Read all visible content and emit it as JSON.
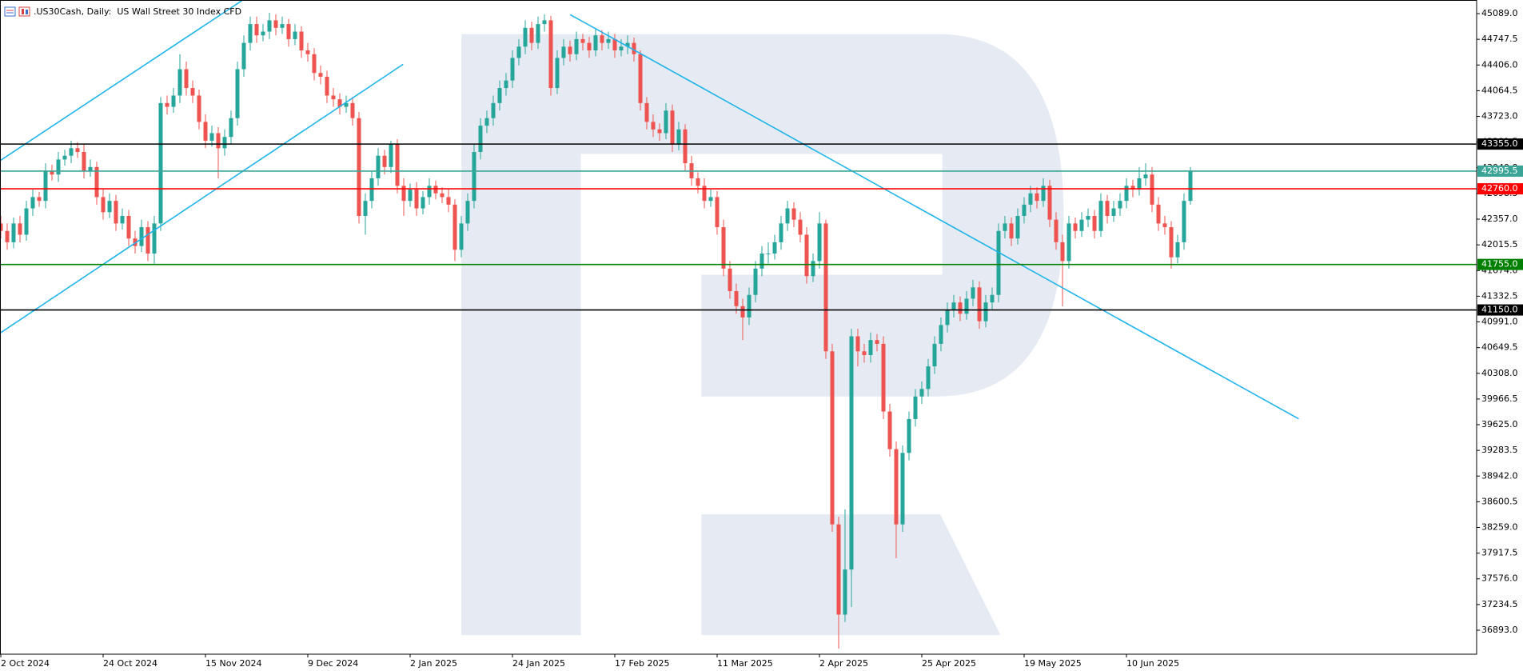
{
  "chart_data": {
    "type": "candlestick",
    "title": ".US30Cash, Daily:  US Wall Street 30 Index CFD",
    "up_color": "#26a69a",
    "down_color": "#ef5350",
    "ylim": [
      36574,
      45270
    ],
    "yticks": [
      {
        "value": 45089,
        "label": "45089.0"
      },
      {
        "value": 44747.5,
        "label": "44747.5"
      },
      {
        "value": 44406,
        "label": "44406.0"
      },
      {
        "value": 44064.5,
        "label": "44064.5"
      },
      {
        "value": 43723,
        "label": "43723.0"
      },
      {
        "value": 43381.5,
        "label": "43381.5"
      },
      {
        "value": 43040,
        "label": "43040.0"
      },
      {
        "value": 42698.5,
        "label": "42698.5"
      },
      {
        "value": 42357,
        "label": "42357.0"
      },
      {
        "value": 42015.5,
        "label": "42015.5"
      },
      {
        "value": 41674,
        "label": "41674.0"
      },
      {
        "value": 41332.5,
        "label": "41332.5"
      },
      {
        "value": 40991,
        "label": "40991.0"
      },
      {
        "value": 40649.5,
        "label": "40649.5"
      },
      {
        "value": 40308,
        "label": "40308.0"
      },
      {
        "value": 39966.5,
        "label": "39966.5"
      },
      {
        "value": 39625,
        "label": "39625.0"
      },
      {
        "value": 39283.5,
        "label": "39283.5"
      },
      {
        "value": 38942,
        "label": "38942.0"
      },
      {
        "value": 38600.5,
        "label": "38600.5"
      },
      {
        "value": 38259,
        "label": "38259.0"
      },
      {
        "value": 37917.5,
        "label": "37917.5"
      },
      {
        "value": 37576,
        "label": "37576.0"
      },
      {
        "value": 37234.5,
        "label": "37234.5"
      },
      {
        "value": 36893,
        "label": "36893.0"
      }
    ],
    "levels": [
      {
        "value": 43355,
        "label": "43355.0",
        "color": "#000000"
      },
      {
        "value": 42995.5,
        "label": "42995.5",
        "color": "#3aa597"
      },
      {
        "value": 42760,
        "label": "42760.0",
        "color": "#ff0000"
      },
      {
        "value": 41755,
        "label": "41755.0",
        "color": "#008000"
      },
      {
        "value": 41150,
        "label": "41150.0",
        "color": "#000000"
      }
    ],
    "categories": [
      "2 Oct 2024",
      null,
      null,
      null,
      null,
      null,
      null,
      null,
      null,
      null,
      null,
      null,
      null,
      null,
      null,
      null,
      "24 Oct 2024",
      null,
      null,
      null,
      null,
      null,
      null,
      null,
      null,
      null,
      null,
      null,
      null,
      null,
      null,
      null,
      "15 Nov 2024",
      null,
      null,
      null,
      null,
      null,
      null,
      null,
      null,
      null,
      null,
      null,
      null,
      null,
      null,
      null,
      "9 Dec 2024",
      null,
      null,
      null,
      null,
      null,
      null,
      null,
      null,
      null,
      null,
      null,
      null,
      null,
      null,
      null,
      "2 Jan 2025",
      null,
      null,
      null,
      null,
      null,
      null,
      null,
      null,
      null,
      null,
      null,
      null,
      null,
      null,
      null,
      "24 Jan 2025",
      null,
      null,
      null,
      null,
      null,
      null,
      null,
      null,
      null,
      null,
      null,
      null,
      null,
      null,
      null,
      "17 Feb 2025",
      null,
      null,
      null,
      null,
      null,
      null,
      null,
      null,
      null,
      null,
      null,
      null,
      null,
      null,
      null,
      "11 Mar 2025",
      null,
      null,
      null,
      null,
      null,
      null,
      null,
      null,
      null,
      null,
      null,
      null,
      null,
      null,
      null,
      "2 Apr 2025",
      null,
      null,
      null,
      null,
      null,
      null,
      null,
      null,
      null,
      null,
      null,
      null,
      null,
      null,
      null,
      "25 Apr 2025",
      null,
      null,
      null,
      null,
      null,
      null,
      null,
      null,
      null,
      null,
      null,
      null,
      null,
      null,
      null,
      "19 May 2025",
      null,
      null,
      null,
      null,
      null,
      null,
      null,
      null,
      null,
      null,
      null,
      null,
      null,
      null,
      null,
      "10 Jun 2025",
      null,
      null,
      null,
      null,
      null,
      null,
      null,
      null,
      null,
      null
    ],
    "open": [
      42300,
      42200,
      42050,
      42300,
      42150,
      42500,
      42650,
      42600,
      43000,
      42950,
      43150,
      43200,
      43300,
      43250,
      43000,
      43050,
      42650,
      42450,
      42600,
      42300,
      42400,
      42100,
      42000,
      42250,
      41900,
      42300,
      43900,
      43850,
      44000,
      44350,
      44100,
      44000,
      43650,
      43400,
      43500,
      43300,
      43450,
      43700,
      44350,
      44700,
      44950,
      44800,
      44850,
      45000,
      44900,
      44950,
      44750,
      44850,
      44600,
      44550,
      44300,
      44250,
      44000,
      43950,
      43850,
      43900,
      43700,
      42400,
      42600,
      42900,
      43200,
      43050,
      43350,
      42800,
      42600,
      42750,
      42500,
      42650,
      42800,
      42700,
      42650,
      42550,
      41950,
      42300,
      42600,
      43250,
      43600,
      43700,
      43900,
      44100,
      44200,
      44500,
      44650,
      44900,
      44700,
      44950,
      45000,
      44100,
      44500,
      44650,
      44550,
      44750,
      44700,
      44600,
      44800,
      44700,
      44750,
      44600,
      44650,
      44700,
      44550,
      43900,
      43650,
      43550,
      43500,
      43800,
      43350,
      43550,
      43100,
      42900,
      42800,
      42600,
      42650,
      42250,
      41700,
      41400,
      41200,
      41050,
      41350,
      41700,
      41900,
      41900,
      42050,
      42300,
      42500,
      42350,
      42150,
      41600,
      41800,
      42300,
      40600,
      38300,
      37100,
      37700,
      40800,
      40600,
      40550,
      40750,
      40700,
      39800,
      39300,
      38300,
      39250,
      39700,
      40000,
      40100,
      40400,
      40700,
      40950,
      41150,
      41250,
      41100,
      41300,
      41450,
      41000,
      41250,
      41350,
      42200,
      42300,
      42100,
      42400,
      42550,
      42700,
      42600,
      42800,
      42350,
      42050,
      41800,
      42300,
      42200,
      42350,
      42400,
      42200,
      42600,
      42400,
      42500,
      42600,
      42800,
      42750,
      42900,
      42950,
      42550,
      42300,
      42250,
      41850,
      42050,
      42600
    ],
    "high": [
      42400,
      42300,
      42380,
      42400,
      42600,
      42750,
      42720,
      43100,
      43080,
      43250,
      43280,
      43400,
      43380,
      43350,
      43150,
      43120,
      42750,
      42700,
      42680,
      42500,
      42480,
      42200,
      42350,
      42330,
      42400,
      43980,
      44000,
      44100,
      44550,
      44450,
      44200,
      44080,
      43750,
      43600,
      43580,
      43550,
      43800,
      44450,
      44800,
      45050,
      45050,
      44950,
      45100,
      45080,
      45050,
      45020,
      44950,
      44920,
      44700,
      44630,
      44400,
      44330,
      44100,
      44030,
      44000,
      43980,
      43780,
      42700,
      43000,
      43300,
      43280,
      43400,
      43420,
      42900,
      42830,
      42850,
      42730,
      42900,
      42870,
      42780,
      42750,
      42620,
      42400,
      42700,
      43350,
      43700,
      43800,
      44000,
      44200,
      44300,
      44600,
      44750,
      45000,
      44980,
      45050,
      45080,
      45060,
      44600,
      44750,
      44730,
      44850,
      44820,
      44780,
      44900,
      44870,
      44850,
      44820,
      44750,
      44800,
      44770,
      44600,
      43980,
      43750,
      43630,
      43900,
      43880,
      43650,
      43620,
      43200,
      42980,
      42900,
      42750,
      42730,
      42350,
      41800,
      41500,
      41300,
      41450,
      41800,
      42000,
      42050,
      42150,
      42400,
      42600,
      42580,
      42450,
      42250,
      41900,
      42450,
      42350,
      40700,
      38400,
      38500,
      40900,
      40900,
      40700,
      40850,
      40830,
      40800,
      39900,
      39400,
      39350,
      39800,
      40100,
      40200,
      40500,
      40800,
      41050,
      41250,
      41350,
      41330,
      41400,
      41550,
      41530,
      41350,
      41450,
      42300,
      42400,
      42380,
      42500,
      42650,
      42800,
      42780,
      42900,
      42880,
      42450,
      42150,
      42400,
      42380,
      42450,
      42500,
      42480,
      42700,
      42680,
      42600,
      42700,
      42900,
      42880,
      43050,
      43100,
      43050,
      42650,
      42400,
      42330,
      42150,
      42700,
      43050
    ],
    "low": [
      42100,
      41950,
      41970,
      42050,
      42070,
      42400,
      42520,
      42500,
      42870,
      42850,
      43070,
      43100,
      43170,
      42900,
      42920,
      42550,
      42350,
      42370,
      42200,
      42220,
      42000,
      41900,
      41920,
      41800,
      41750,
      42200,
      43750,
      43770,
      43900,
      44000,
      43900,
      43550,
      43300,
      43320,
      42900,
      43200,
      43350,
      43600,
      44250,
      44600,
      44700,
      44720,
      44750,
      44800,
      44820,
      44650,
      44670,
      44500,
      44450,
      44200,
      44150,
      43900,
      43850,
      43750,
      43770,
      43600,
      42300,
      42150,
      42500,
      42800,
      42950,
      42970,
      42700,
      42400,
      42520,
      42400,
      42420,
      42550,
      42620,
      42570,
      42450,
      41800,
      41850,
      42200,
      42500,
      43150,
      43500,
      43600,
      43800,
      44000,
      44100,
      44400,
      44550,
      44600,
      44620,
      44850,
      44000,
      44020,
      44400,
      44450,
      44470,
      44600,
      44500,
      44520,
      44600,
      44620,
      44500,
      44520,
      44550,
      44450,
      43800,
      43550,
      43450,
      43400,
      43420,
      43250,
      43270,
      43000,
      42800,
      42700,
      42500,
      42520,
      42150,
      41600,
      41300,
      41100,
      40750,
      40950,
      41250,
      41600,
      41750,
      41820,
      41950,
      42200,
      42250,
      42050,
      41500,
      41520,
      41700,
      40500,
      38200,
      36650,
      37000,
      37200,
      40400,
      40450,
      40450,
      40600,
      39700,
      39200,
      37850,
      38200,
      39150,
      39600,
      39900,
      40000,
      40300,
      40600,
      40850,
      41050,
      41000,
      41020,
      41200,
      40900,
      40920,
      41150,
      41250,
      42100,
      42000,
      42020,
      42300,
      42450,
      42500,
      42520,
      42250,
      41950,
      41200,
      41700,
      42100,
      42120,
      42250,
      42100,
      42120,
      42300,
      42320,
      42400,
      42500,
      42650,
      42670,
      42800,
      42450,
      42200,
      42150,
      41700,
      41770,
      41950,
      42550
    ],
    "close": [
      42200,
      42050,
      42300,
      42150,
      42500,
      42650,
      42600,
      43000,
      42950,
      43150,
      43200,
      43300,
      43250,
      43000,
      43050,
      42650,
      42450,
      42600,
      42300,
      42400,
      42100,
      42000,
      42250,
      41900,
      42300,
      43900,
      43850,
      44000,
      44350,
      44100,
      44000,
      43650,
      43400,
      43500,
      43300,
      43450,
      43700,
      44350,
      44700,
      44950,
      44800,
      44850,
      45000,
      44900,
      44950,
      44750,
      44850,
      44600,
      44550,
      44300,
      44250,
      44000,
      43950,
      43850,
      43900,
      43700,
      42400,
      42600,
      42900,
      43200,
      43050,
      43350,
      42800,
      42600,
      42750,
      42500,
      42650,
      42800,
      42700,
      42650,
      42550,
      41950,
      42300,
      42600,
      43250,
      43600,
      43700,
      43900,
      44100,
      44200,
      44500,
      44650,
      44900,
      44700,
      44950,
      45000,
      44100,
      44500,
      44650,
      44550,
      44750,
      44700,
      44600,
      44800,
      44700,
      44750,
      44600,
      44650,
      44700,
      44550,
      43900,
      43650,
      43550,
      43500,
      43800,
      43350,
      43550,
      43100,
      42900,
      42800,
      42600,
      42650,
      42250,
      41700,
      41400,
      41200,
      41050,
      41350,
      41700,
      41900,
      41900,
      42050,
      42300,
      42500,
      42350,
      42150,
      41600,
      41800,
      42300,
      40600,
      38300,
      37100,
      37700,
      40800,
      40600,
      40550,
      40750,
      40700,
      39800,
      39300,
      38300,
      39250,
      39700,
      40000,
      40100,
      40400,
      40700,
      40950,
      41150,
      41250,
      41100,
      41300,
      41450,
      41000,
      41250,
      41350,
      42200,
      42300,
      42100,
      42400,
      42550,
      42700,
      42600,
      42800,
      42350,
      42050,
      41800,
      42300,
      42200,
      42350,
      42400,
      42200,
      42600,
      42400,
      42500,
      42600,
      42800,
      42750,
      42900,
      42950,
      42550,
      42300,
      42250,
      41850,
      42050,
      42600,
      42990
    ]
  }
}
